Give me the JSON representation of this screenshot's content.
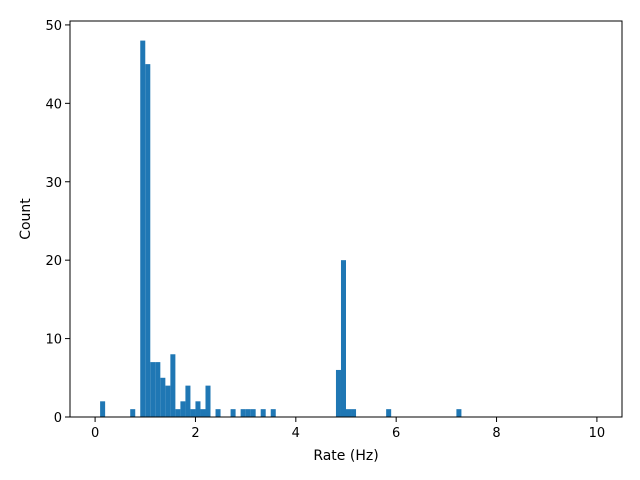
{
  "chart_data": {
    "type": "bar",
    "xlabel": "Rate (Hz)",
    "ylabel": "Count",
    "xlim": [
      -0.5,
      10.5
    ],
    "ylim": [
      0,
      50.5
    ],
    "xticks": [
      0,
      2,
      4,
      6,
      8,
      10
    ],
    "yticks": [
      0,
      10,
      20,
      30,
      40,
      50
    ],
    "grid": false,
    "bin_width": 0.1,
    "bar_color": "#1f77b4",
    "bins": [
      {
        "x": 0.1,
        "count": 2
      },
      {
        "x": 0.7,
        "count": 1
      },
      {
        "x": 0.9,
        "count": 48
      },
      {
        "x": 1.0,
        "count": 45
      },
      {
        "x": 1.1,
        "count": 7
      },
      {
        "x": 1.2,
        "count": 7
      },
      {
        "x": 1.3,
        "count": 5
      },
      {
        "x": 1.4,
        "count": 4
      },
      {
        "x": 1.5,
        "count": 8
      },
      {
        "x": 1.6,
        "count": 1
      },
      {
        "x": 1.7,
        "count": 2
      },
      {
        "x": 1.8,
        "count": 4
      },
      {
        "x": 1.9,
        "count": 1
      },
      {
        "x": 2.0,
        "count": 2
      },
      {
        "x": 2.1,
        "count": 1
      },
      {
        "x": 2.2,
        "count": 4
      },
      {
        "x": 2.4,
        "count": 1
      },
      {
        "x": 2.7,
        "count": 1
      },
      {
        "x": 2.9,
        "count": 1
      },
      {
        "x": 3.0,
        "count": 1
      },
      {
        "x": 3.1,
        "count": 1
      },
      {
        "x": 3.3,
        "count": 1
      },
      {
        "x": 3.5,
        "count": 1
      },
      {
        "x": 4.8,
        "count": 6
      },
      {
        "x": 4.9,
        "count": 20
      },
      {
        "x": 5.0,
        "count": 1
      },
      {
        "x": 5.1,
        "count": 1
      },
      {
        "x": 5.8,
        "count": 1
      },
      {
        "x": 7.2,
        "count": 1
      }
    ]
  }
}
